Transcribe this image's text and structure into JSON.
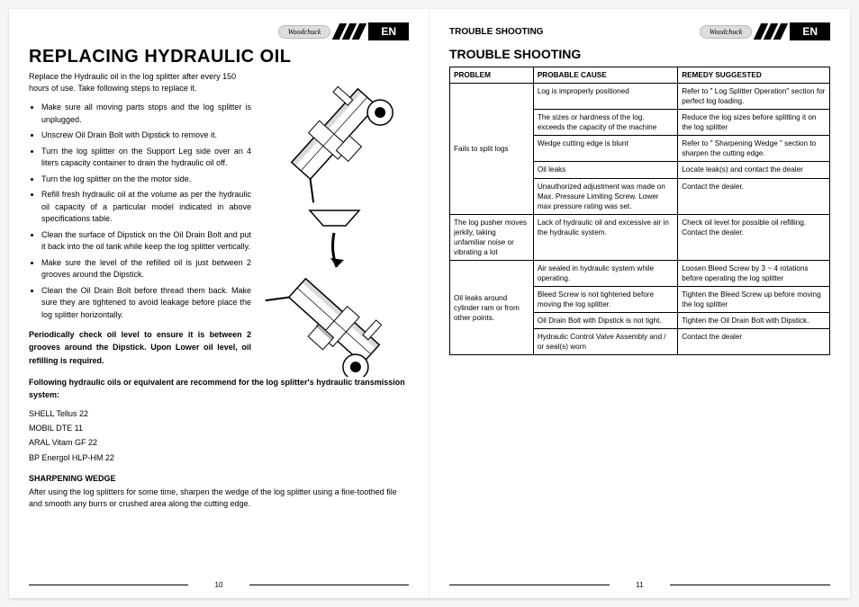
{
  "lang_tab": "EN",
  "brand": "Woodchuck",
  "left": {
    "title": "REPLACING HYDRAULIC OIL",
    "intro": "Replace the Hydraulic oil in the log splitter after every 150 hours of use. Take following steps to replace it.",
    "steps": [
      "Make sure all moving parts stops and the log splitter is unplugged.",
      "Unscrew Oil Drain Bolt with Dipstick to remove it.",
      "Turn the log splitter on the Support Leg side over an 4 liters capacity container to drain the hydraulic oil off.",
      "Turn the log splitter on the the motor side.",
      "Refill fresh hydraulic oil at the volume as per the hydraulic oil capacity of a particular model indicated in above specifications table.",
      "Clean the surface of Dipstick on the Oil Drain Bolt and put it back into the oil tank while keep the log splitter vertically.",
      "Make sure the level of the refilled oil is just between 2 grooves around the Dipstick.",
      "Clean the Oil Drain Bolt before thread them back. Make sure they are tightened to avoid leakage before place the log splitter horizontally."
    ],
    "note": "Periodically check oil level to ensure it is between 2 grooves around the Dipstick. Upon Lower oil level, oil refilling is required.",
    "oils_intro": "Following hydraulic oils or equivalent are recommend for the log splitter's hydraulic transmission system:",
    "oils": [
      "SHELL Tellus 22",
      "MOBIL DTE 11",
      "ARAL Vitam GF 22",
      "BP Energol HLP-HM 22"
    ],
    "sharp_title": "SHARPENING WEDGE",
    "sharp_text": "After using the log splitters for some time, sharpen the wedge of the log splitter using a fine-toothed file and smooth any burrs or crushed area along the cutting edge.",
    "page_num": "10"
  },
  "right": {
    "header_title": "TROUBLE SHOOTING",
    "title": "TROUBLE SHOOTING",
    "columns": [
      "PROBLEM",
      "PROBABLE CAUSE",
      "REMEDY SUGGESTED"
    ],
    "rows": [
      {
        "problem": "Fails to split logs",
        "span": 5,
        "cause": "Log is improperly positioned",
        "remedy": "Refer to \" Log Splitter Operation\" section for perfect log loading."
      },
      {
        "cause": "The sizes or hardness of the log. exceeds the capacity of the machine",
        "remedy": "Reduce the log sizes before splitting it on the log splitter"
      },
      {
        "cause": "Wedge cutting edge is blunt",
        "remedy": "Refer to \" Sharpening Wedge \" section to sharpen the cutting edge."
      },
      {
        "cause": "Oil leaks",
        "remedy": "Locate leak(s) and contact the dealer"
      },
      {
        "cause": "Unauthorized adjustment  was made on  Max. Pressure Limiting Screw. Lower max pressure rating was set.",
        "remedy": "Contact the dealer."
      },
      {
        "problem": "The log pusher moves jerkily, taking unfamiliar noise or vibrating a lot",
        "span": 1,
        "cause": "Lack of hydraulic oil and excessive air in the hydraulic system.",
        "remedy": "Check oil level for possible oil refilling. Contact the dealer."
      },
      {
        "problem": "Oil leaks around cylinder ram or from other points.",
        "span": 4,
        "cause": "Air sealed in hydraulic system while operating.",
        "remedy": "Loosen Bleed Screw by 3 ~ 4 rotations before operating the log splitter"
      },
      {
        "cause": "Bleed Screw is not tightened before moving the log splitter.",
        "remedy": "Tighten the Bleed Screw up before moving the log splitter"
      },
      {
        "cause": "Oil Drain Bolt with Dipstick is not tight.",
        "remedy": "Tighten the Oil Drain Bolt with Dipstick."
      },
      {
        "cause": "Hydraulic Control Valve Assembly and / or seal(s) worn",
        "remedy": "Contact the dealer"
      }
    ],
    "page_num": "11"
  }
}
